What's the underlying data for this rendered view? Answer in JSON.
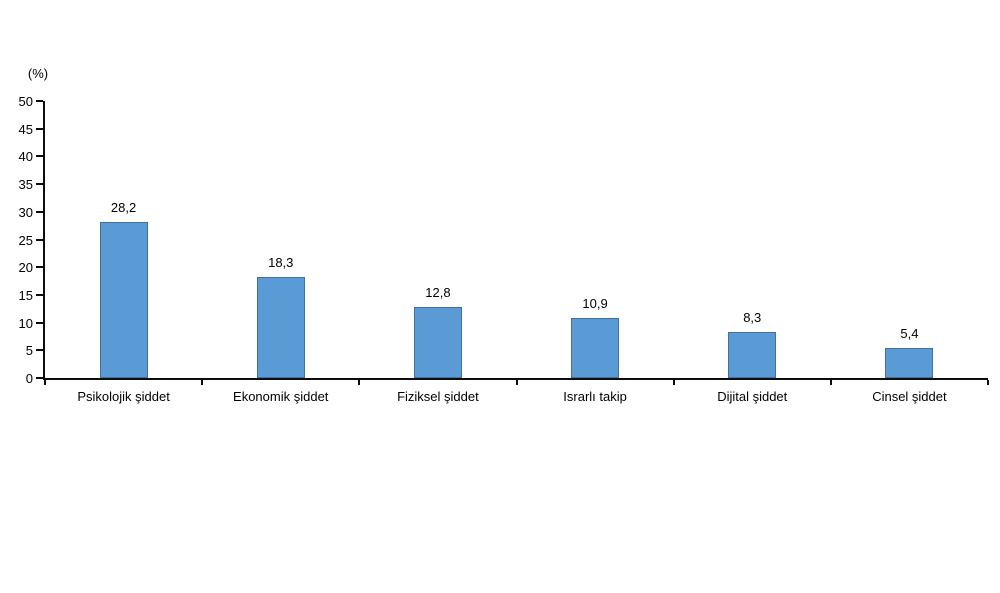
{
  "chart_data": {
    "type": "bar",
    "title": "",
    "xlabel": "",
    "ylabel": "(%)",
    "categories": [
      "Psikolojik şiddet",
      "Ekonomik şiddet",
      "Fiziksel şiddet",
      "Israrlı takip",
      "Dijital şiddet",
      "Cinsel şiddet"
    ],
    "values": [
      28.2,
      18.3,
      12.8,
      10.9,
      8.3,
      5.4
    ],
    "value_labels": [
      "28,2",
      "18,3",
      "12,8",
      "10,9",
      "8,3",
      "5,4"
    ],
    "ylim": [
      0,
      50
    ],
    "ytick_step": 5,
    "ytick_labels": [
      "0",
      "5",
      "10",
      "15",
      "20",
      "25",
      "30",
      "35",
      "40",
      "45",
      "50"
    ],
    "grid": false,
    "legend_position": "none",
    "bar_color": "#5B9BD5",
    "bar_border_color": "#41719C",
    "axis_color": "#0d0d0d",
    "text_color": "#000000"
  }
}
